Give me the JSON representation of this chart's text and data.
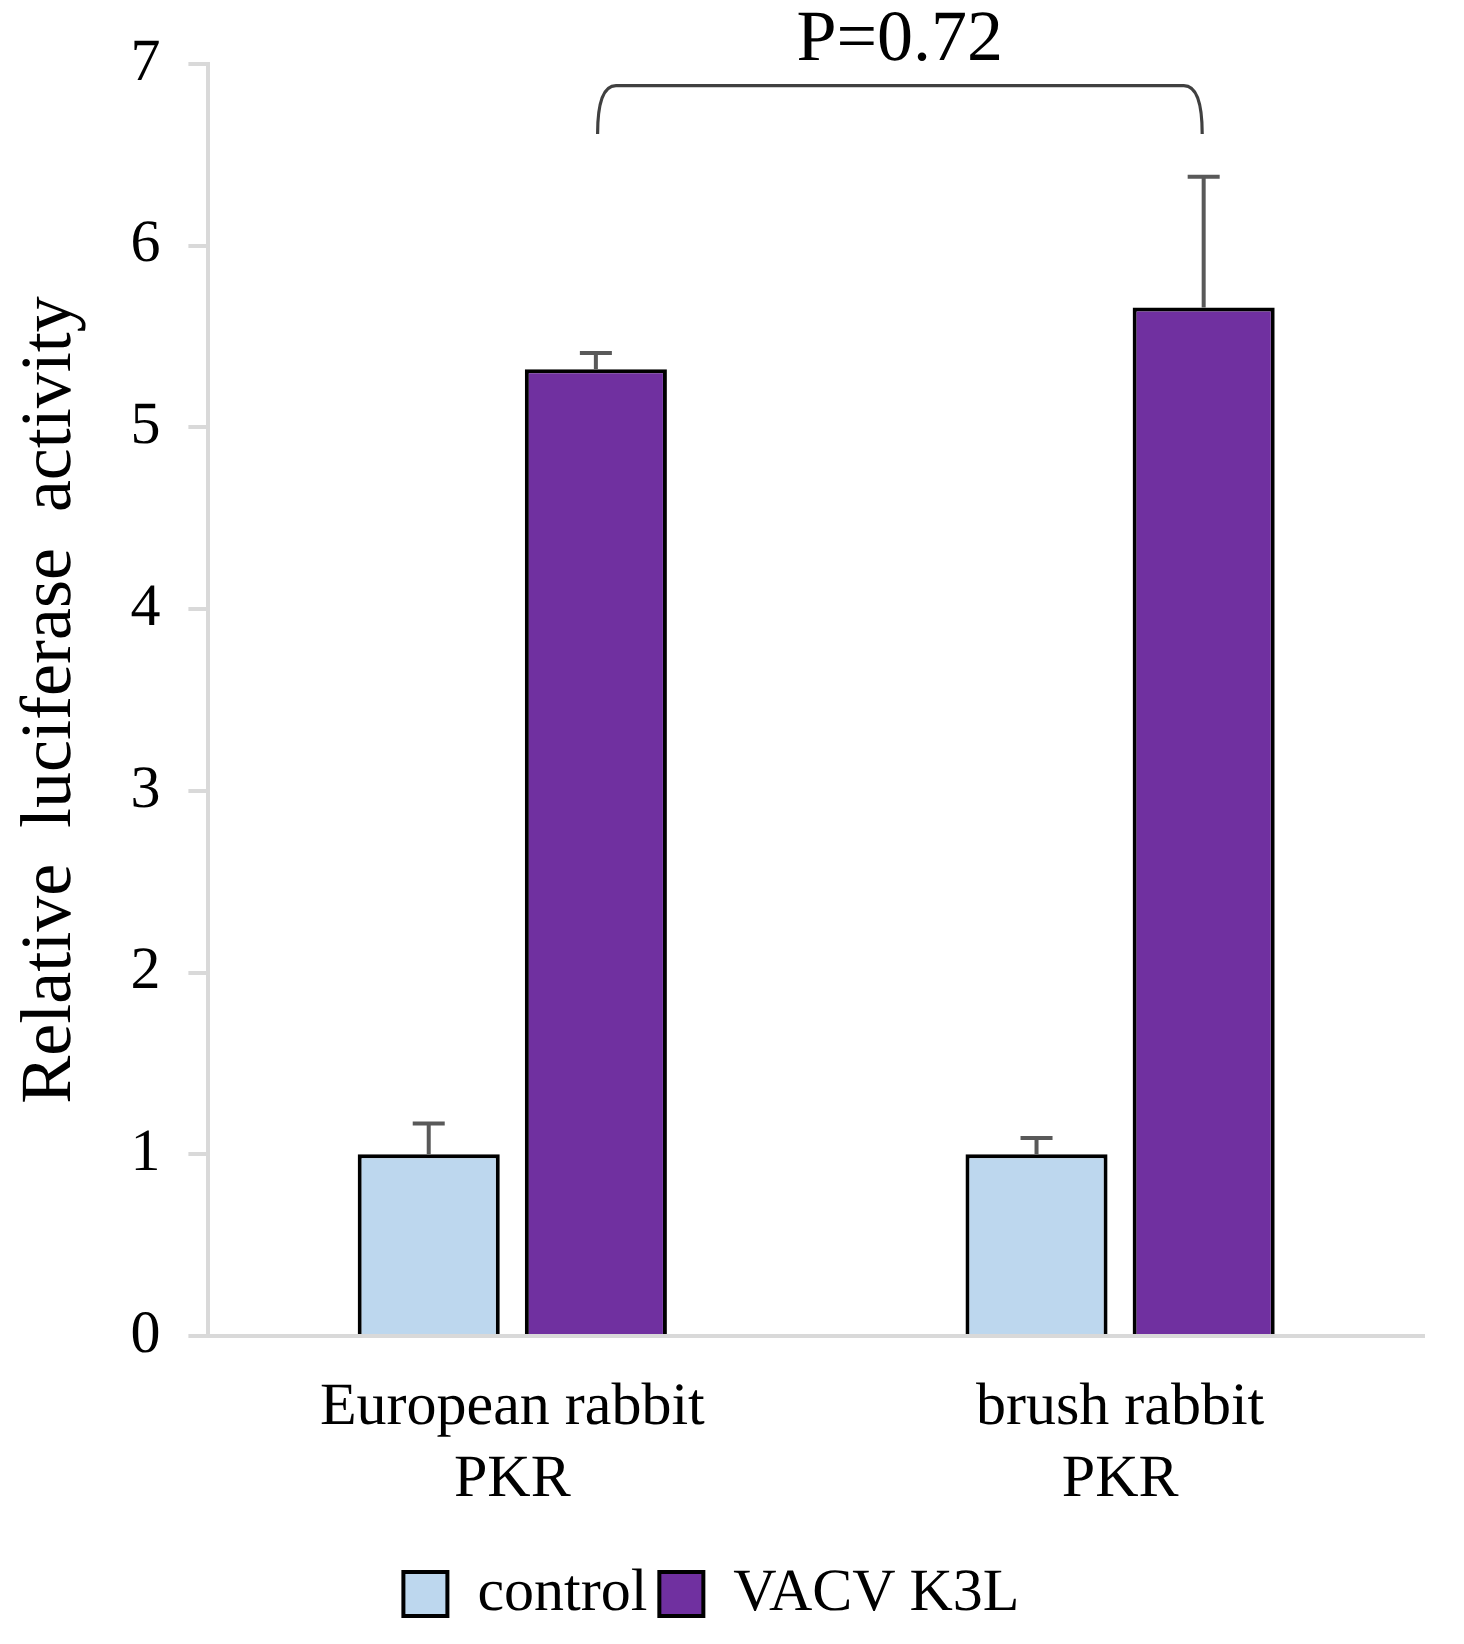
{
  "chart_data": {
    "type": "bar",
    "ylabel": "Relative  luciferase  activity",
    "categories": [
      "European rabbit PKR",
      "brush rabbit PKR"
    ],
    "series": [
      {
        "name": "control",
        "color": "#bdd7ee",
        "values": [
          1.0,
          1.0
        ],
        "errors": [
          0.17,
          0.09
        ]
      },
      {
        "name": "VACV K3L",
        "color": "#7030a0",
        "values": [
          5.32,
          5.66
        ],
        "errors": [
          0.09,
          0.72
        ]
      }
    ],
    "ylim": [
      0,
      7
    ],
    "yticks": [
      0,
      1,
      2,
      3,
      4,
      5,
      6,
      7
    ],
    "grid": false,
    "legend": "bottom",
    "annotations": [
      "P=0.72"
    ]
  }
}
